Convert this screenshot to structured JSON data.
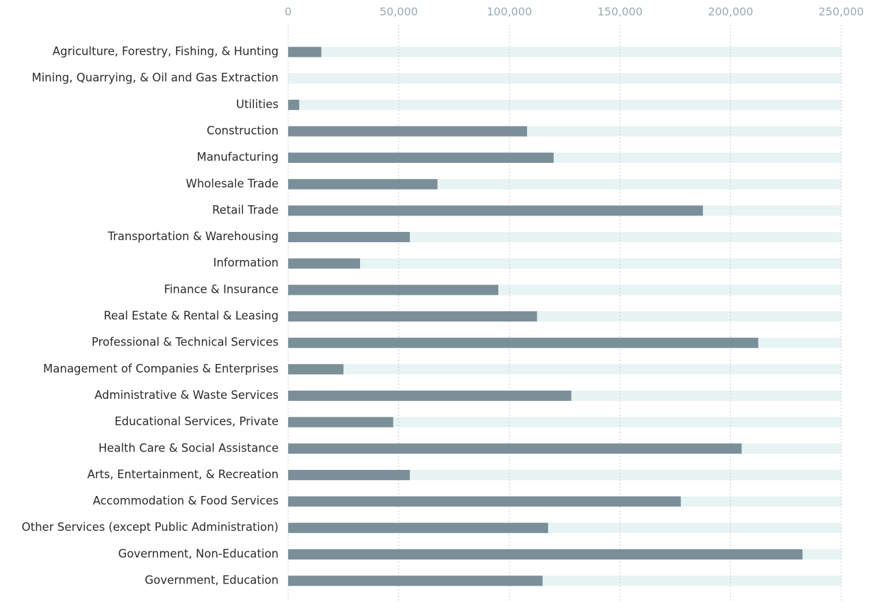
{
  "chart_data": {
    "type": "bar",
    "orientation": "horizontal",
    "categories": [
      "Agriculture, Forestry, Fishing, & Hunting",
      "Mining, Quarrying, & Oil and Gas Extraction",
      "Utilities",
      "Construction",
      "Manufacturing",
      "Wholesale Trade",
      "Retail Trade",
      "Transportation & Warehousing",
      "Information",
      "Finance & Insurance",
      "Real Estate & Rental & Leasing",
      "Professional & Technical Services",
      "Management of Companies & Enterprises",
      "Administrative & Waste Services",
      "Educational Services, Private",
      "Health Care & Social Assistance",
      "Arts, Entertainment, & Recreation",
      "Accommodation & Food Services",
      "Other Services (except Public Administration)",
      "Government, Non-Education",
      "Government, Education"
    ],
    "values": [
      15000,
      0,
      5000,
      108000,
      120000,
      67500,
      187500,
      55000,
      32500,
      95000,
      112500,
      212500,
      25000,
      128000,
      47500,
      205000,
      55000,
      177500,
      117500,
      232500,
      115000
    ],
    "color": "#7b8f99",
    "track_color": "#e8f3f3",
    "xlim": [
      0,
      250000
    ],
    "xticks": [
      0,
      {
        "value": 50000,
        "label": "50,000"
      },
      {
        "value": 100000,
        "label": "100,000"
      },
      {
        "value": 150000,
        "label": "150,000"
      },
      {
        "value": 200000,
        "label": "200,000"
      },
      {
        "value": 250000,
        "label": "250,000"
      }
    ],
    "grid": true
  }
}
